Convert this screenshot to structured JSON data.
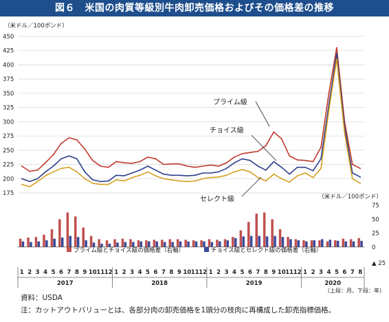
{
  "title": "図６　米国の肉質等級別牛肉卸売価格およびその価格差の推移",
  "source": "資料：USDA",
  "footnote": "注：カットアウトバリューとは、各部分肉の卸売価格を1頭分の枝肉に再構成した卸売指標価格。",
  "chart_data": [
    {
      "type": "line",
      "y_unit": "（米ドル／100ポンド）",
      "ylim": [
        175,
        450
      ],
      "yticks": [
        175,
        200,
        225,
        250,
        275,
        300,
        325,
        350,
        375,
        400,
        425,
        450
      ],
      "x_unit": "month",
      "x_range": [
        "2017-01",
        "2020-08"
      ],
      "grid": true,
      "series": [
        {
          "name": "プライム級",
          "color": "#c0392b",
          "x": [
            "2017-01",
            "2017-02",
            "2017-03",
            "2017-04",
            "2017-05",
            "2017-06",
            "2017-07",
            "2017-08",
            "2017-09",
            "2017-10",
            "2017-11",
            "2017-12",
            "2018-01",
            "2018-02",
            "2018-03",
            "2018-04",
            "2018-05",
            "2018-06",
            "2018-07",
            "2018-08",
            "2018-09",
            "2018-10",
            "2018-11",
            "2018-12",
            "2019-01",
            "2019-02",
            "2019-03",
            "2019-04",
            "2019-05",
            "2019-06",
            "2019-07",
            "2019-08",
            "2019-09",
            "2019-10",
            "2019-11",
            "2019-12",
            "2020-01",
            "2020-02",
            "2020-03",
            "2020-04",
            "2020-05",
            "2020-06",
            "2020-07",
            "2020-08"
          ],
          "values": [
            222,
            213,
            215,
            228,
            242,
            262,
            272,
            268,
            252,
            232,
            222,
            220,
            230,
            228,
            227,
            230,
            238,
            235,
            225,
            226,
            226,
            222,
            220,
            222,
            224,
            222,
            228,
            238,
            244,
            246,
            248,
            258,
            282,
            270,
            240,
            233,
            232,
            230,
            255,
            350,
            430,
            300,
            225,
            218
          ]
        },
        {
          "name": "チョイス級",
          "color": "#2c3e8c",
          "x": [
            "2017-01",
            "2017-02",
            "2017-03",
            "2017-04",
            "2017-05",
            "2017-06",
            "2017-07",
            "2017-08",
            "2017-09",
            "2017-10",
            "2017-11",
            "2017-12",
            "2018-01",
            "2018-02",
            "2018-03",
            "2018-04",
            "2018-05",
            "2018-06",
            "2018-07",
            "2018-08",
            "2018-09",
            "2018-10",
            "2018-11",
            "2018-12",
            "2019-01",
            "2019-02",
            "2019-03",
            "2019-04",
            "2019-05",
            "2019-06",
            "2019-07",
            "2019-08",
            "2019-09",
            "2019-10",
            "2019-11",
            "2019-12",
            "2020-01",
            "2020-02",
            "2020-03",
            "2020-04",
            "2020-05",
            "2020-06",
            "2020-07",
            "2020-08"
          ],
          "values": [
            200,
            195,
            200,
            212,
            222,
            235,
            240,
            235,
            212,
            198,
            195,
            196,
            206,
            205,
            210,
            215,
            222,
            215,
            208,
            206,
            206,
            205,
            206,
            210,
            210,
            212,
            218,
            228,
            235,
            232,
            222,
            215,
            230,
            220,
            208,
            220,
            220,
            214,
            235,
            330,
            420,
            290,
            210,
            203
          ]
        },
        {
          "name": "セレクト級",
          "color": "#d4a020",
          "x": [
            "2017-01",
            "2017-02",
            "2017-03",
            "2017-04",
            "2017-05",
            "2017-06",
            "2017-07",
            "2017-08",
            "2017-09",
            "2017-10",
            "2017-11",
            "2017-12",
            "2018-01",
            "2018-02",
            "2018-03",
            "2018-04",
            "2018-05",
            "2018-06",
            "2018-07",
            "2018-08",
            "2018-09",
            "2018-10",
            "2018-11",
            "2018-12",
            "2019-01",
            "2019-02",
            "2019-03",
            "2019-04",
            "2019-05",
            "2019-06",
            "2019-07",
            "2019-08",
            "2019-09",
            "2019-10",
            "2019-11",
            "2019-12",
            "2020-01",
            "2020-02",
            "2020-03",
            "2020-04",
            "2020-05",
            "2020-06",
            "2020-07",
            "2020-08"
          ],
          "values": [
            190,
            186,
            195,
            205,
            212,
            218,
            220,
            212,
            200,
            192,
            190,
            190,
            198,
            196,
            202,
            206,
            212,
            205,
            200,
            198,
            196,
            195,
            196,
            200,
            202,
            203,
            206,
            212,
            216,
            212,
            202,
            196,
            208,
            200,
            194,
            205,
            210,
            202,
            218,
            320,
            410,
            280,
            200,
            192
          ]
        }
      ],
      "annotations": [
        "プライム級",
        "チョイス級",
        "セレクト級"
      ]
    },
    {
      "type": "bar",
      "y_unit": "（米ドル／100ポンド）",
      "ylim": [
        -25,
        75
      ],
      "yticks": [
        75,
        50,
        25,
        0
      ],
      "negative_tick_label": "▲ 25",
      "axis_side": "right",
      "legend_position": "bottom",
      "x_unit": "month",
      "x_range": [
        "2017-01",
        "2020-08"
      ],
      "series": [
        {
          "name": "プライム級とチョイス級の価格差（右軸）",
          "color": "#c0504d",
          "x": [
            "2017-01",
            "2017-02",
            "2017-03",
            "2017-04",
            "2017-05",
            "2017-06",
            "2017-07",
            "2017-08",
            "2017-09",
            "2017-10",
            "2017-11",
            "2017-12",
            "2018-01",
            "2018-02",
            "2018-03",
            "2018-04",
            "2018-05",
            "2018-06",
            "2018-07",
            "2018-08",
            "2018-09",
            "2018-10",
            "2018-11",
            "2018-12",
            "2019-01",
            "2019-02",
            "2019-03",
            "2019-04",
            "2019-05",
            "2019-06",
            "2019-07",
            "2019-08",
            "2019-09",
            "2019-10",
            "2019-11",
            "2019-12",
            "2020-01",
            "2020-02",
            "2020-03",
            "2020-04",
            "2020-05",
            "2020-06",
            "2020-07",
            "2020-08"
          ],
          "values": [
            15,
            17,
            18,
            22,
            32,
            50,
            62,
            55,
            35,
            20,
            14,
            12,
            14,
            15,
            14,
            12,
            12,
            13,
            13,
            14,
            14,
            13,
            12,
            12,
            14,
            13,
            14,
            18,
            30,
            45,
            60,
            62,
            50,
            32,
            18,
            14,
            12,
            12,
            12,
            10,
            12,
            15,
            14,
            16
          ]
        },
        {
          "name": "チョイス級とセレクト級の価格差（右軸）",
          "color": "#3a4a9a",
          "x": [
            "2017-01",
            "2017-02",
            "2017-03",
            "2017-04",
            "2017-05",
            "2017-06",
            "2017-07",
            "2017-08",
            "2017-09",
            "2017-10",
            "2017-11",
            "2017-12",
            "2018-01",
            "2018-02",
            "2018-03",
            "2018-04",
            "2018-05",
            "2018-06",
            "2018-07",
            "2018-08",
            "2018-09",
            "2018-10",
            "2018-11",
            "2018-12",
            "2019-01",
            "2019-02",
            "2019-03",
            "2019-04",
            "2019-05",
            "2019-06",
            "2019-07",
            "2019-08",
            "2019-09",
            "2019-10",
            "2019-11",
            "2019-12",
            "2020-01",
            "2020-02",
            "2020-03",
            "2020-04",
            "2020-05",
            "2020-06",
            "2020-07",
            "2020-08"
          ],
          "values": [
            10,
            9,
            10,
            12,
            15,
            17,
            20,
            18,
            12,
            8,
            6,
            6,
            8,
            9,
            9,
            10,
            10,
            10,
            9,
            9,
            10,
            10,
            10,
            10,
            9,
            10,
            12,
            16,
            19,
            20,
            20,
            19,
            20,
            18,
            14,
            12,
            10,
            12,
            14,
            13,
            11,
            10,
            10,
            11
          ]
        }
      ]
    }
  ],
  "x_axis": {
    "month_labels": [
      "1",
      "2",
      "3",
      "4",
      "5",
      "6",
      "7",
      "8",
      "9",
      "10",
      "11",
      "12"
    ],
    "years": [
      "2017",
      "2018",
      "2019",
      "2020"
    ],
    "last_year_months": 8,
    "note": "（上段：月、下段：年）"
  }
}
